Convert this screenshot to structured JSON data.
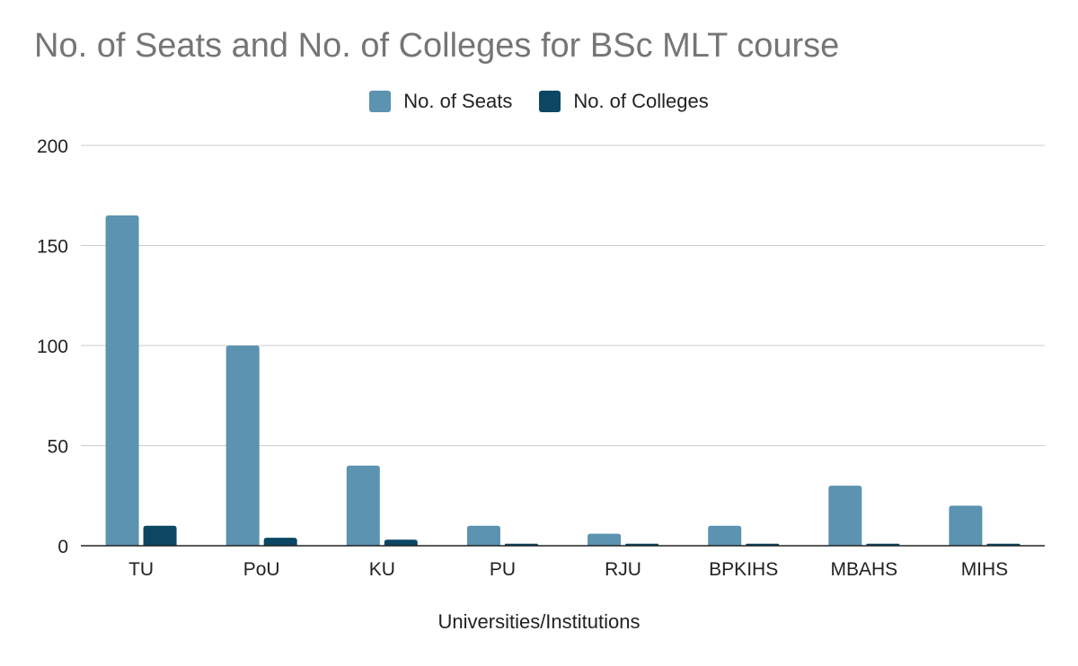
{
  "chart_data": {
    "type": "bar",
    "title": "No. of Seats and No. of Colleges for BSc MLT course",
    "xlabel": "Universities/Institutions",
    "ylabel": "",
    "ylim": [
      0,
      200
    ],
    "yticks": [
      0,
      50,
      100,
      150,
      200
    ],
    "grid": true,
    "legend_position": "top-center",
    "categories": [
      "TU",
      "PoU",
      "KU",
      "PU",
      "RJU",
      "BPKIHS",
      "MBAHS",
      "MIHS"
    ],
    "series": [
      {
        "name": "No. of Seats",
        "color": "#5b93b0",
        "values": [
          165,
          100,
          40,
          10,
          6,
          10,
          30,
          20
        ]
      },
      {
        "name": "No. of Colleges",
        "color": "#0b4763",
        "values": [
          10,
          4,
          3,
          1,
          1,
          1,
          1,
          1
        ]
      }
    ]
  }
}
